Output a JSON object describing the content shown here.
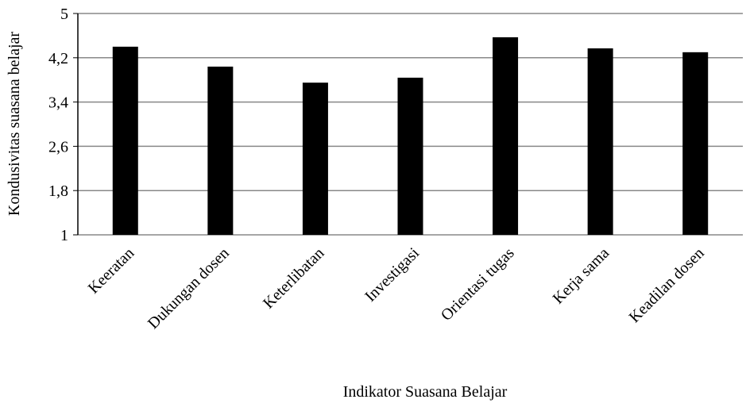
{
  "chart_data": {
    "type": "bar",
    "xlabel": "Indikator Suasana Belajar",
    "ylabel": "Kondusivitas  suasana belajar",
    "categories": [
      "Keeratan",
      "Dukungan dosen",
      "Keterlibatan",
      "Investigasi",
      "Orientasi tugas",
      "Kerja sama",
      "Keadilan dosen"
    ],
    "values": [
      4.4,
      4.04,
      3.75,
      3.84,
      4.57,
      4.37,
      4.3
    ],
    "color": "#000000",
    "ylim": [
      1,
      5
    ],
    "yticks": [
      1,
      {
        "value": 1.8,
        "label": "1,8"
      },
      {
        "value": 2.6,
        "label": "2,6"
      },
      {
        "value": 3.4,
        "label": "3,4"
      },
      {
        "value": 4.2,
        "label": "4,2"
      },
      5
    ],
    "grid": true
  }
}
